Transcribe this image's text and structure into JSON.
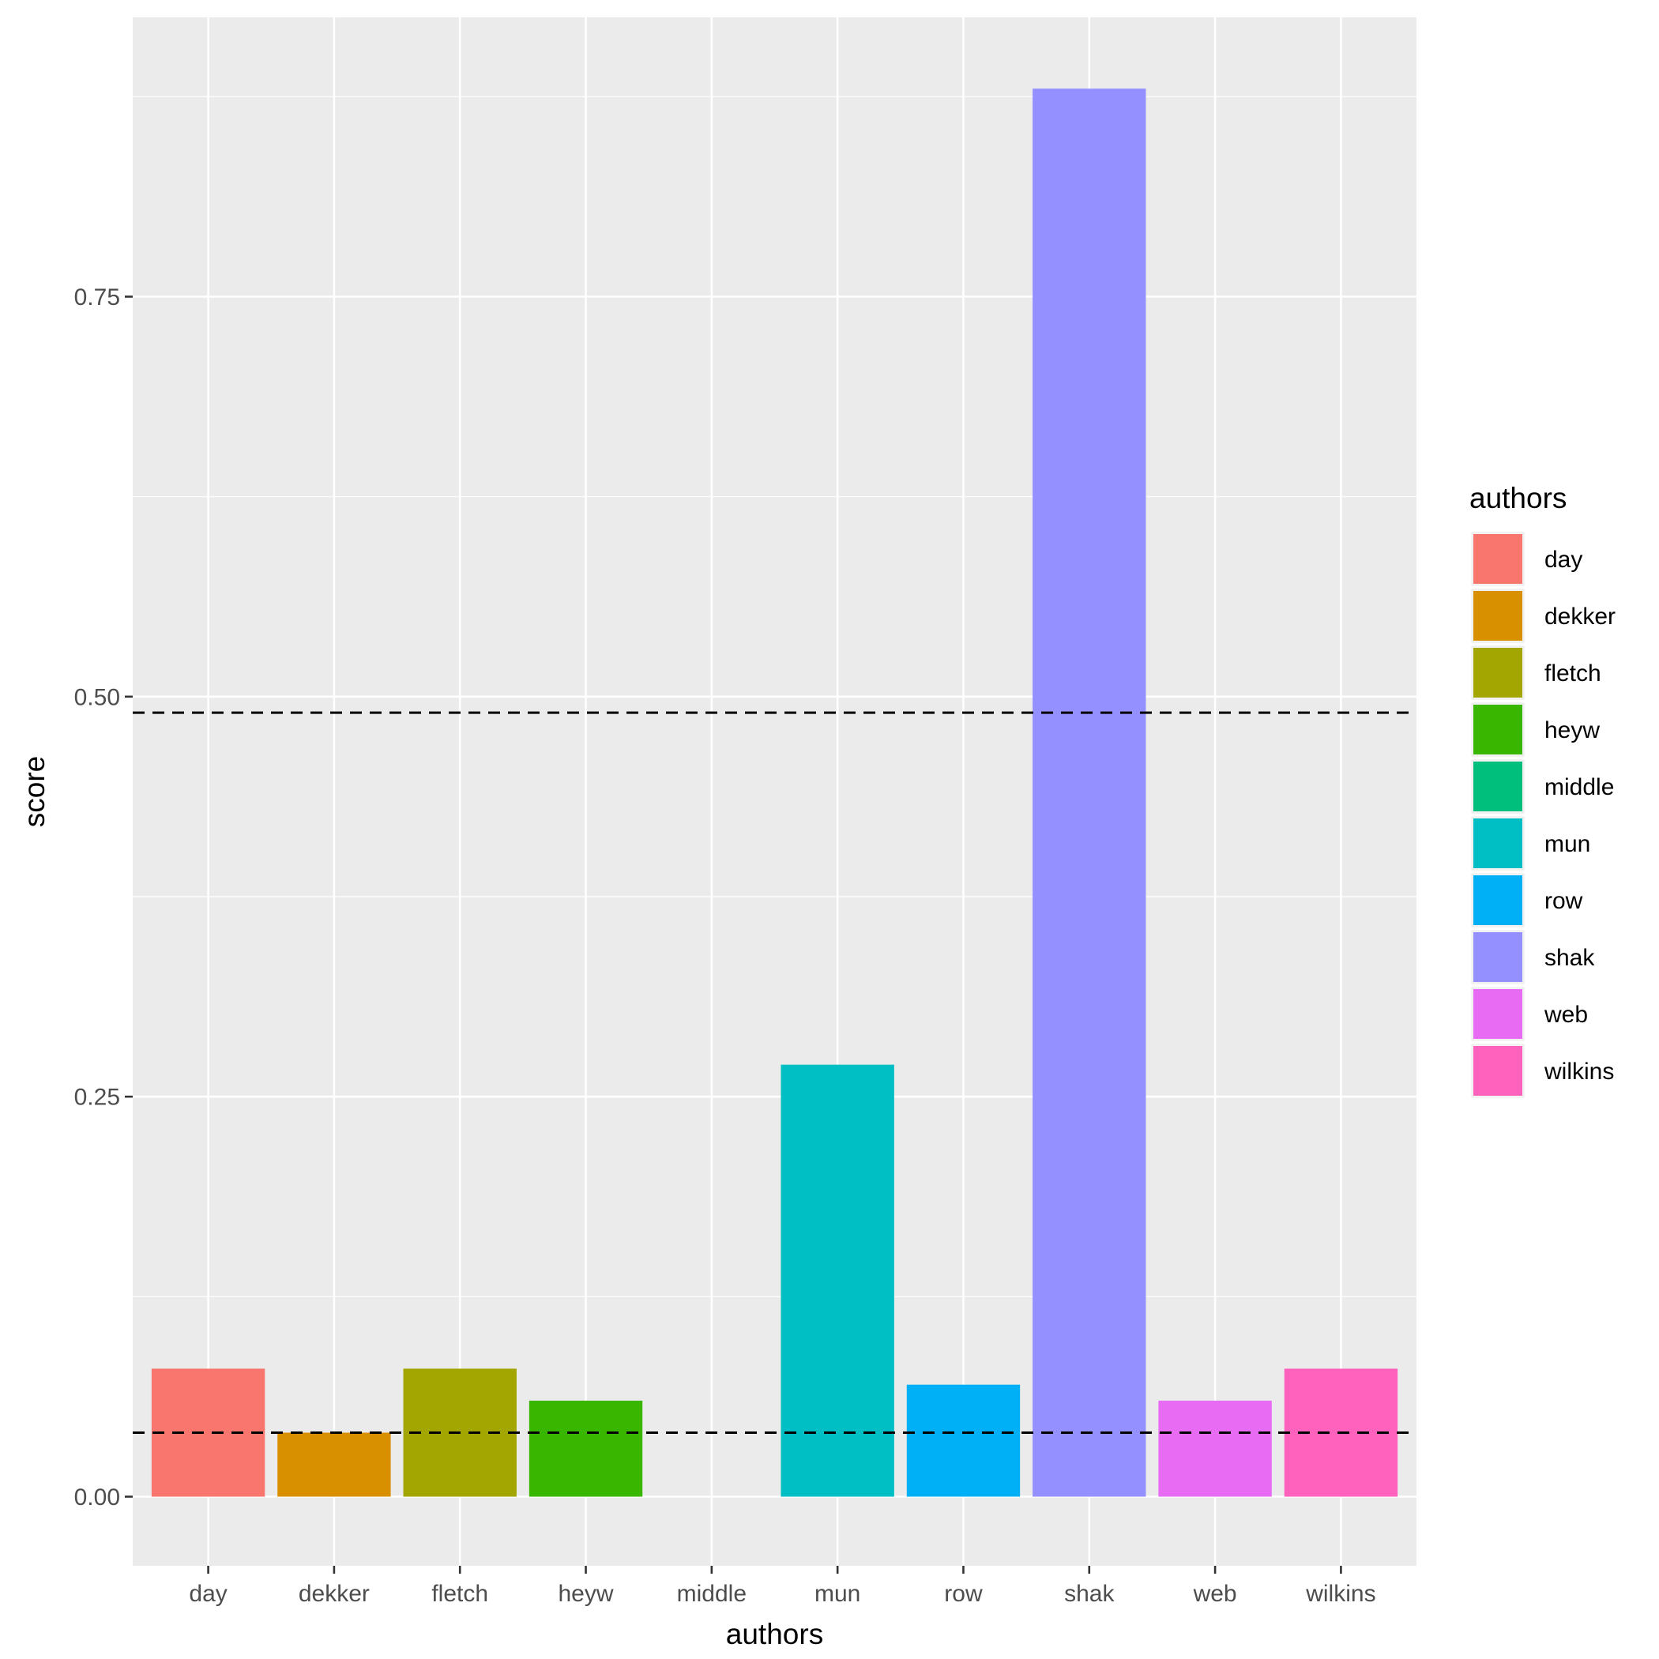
{
  "chart_data": {
    "type": "bar",
    "categories": [
      "day",
      "dekker",
      "fletch",
      "heyw",
      "middle",
      "mun",
      "row",
      "shak",
      "web",
      "wilkins"
    ],
    "values": [
      0.08,
      0.04,
      0.08,
      0.06,
      0.0,
      0.27,
      0.07,
      0.88,
      0.06,
      0.08
    ],
    "colors": [
      "#F8766D",
      "#D89000",
      "#A3A500",
      "#39B600",
      "#00BF7D",
      "#00BFC4",
      "#00B0F6",
      "#9590FF",
      "#E76BF3",
      "#FF62BC"
    ],
    "xlabel": "authors",
    "ylabel": "score",
    "ylim": [
      -0.037,
      0.925
    ],
    "yticks": [
      0.0,
      0.25,
      0.5,
      0.75
    ],
    "ytick_labels": [
      "0.00",
      "0.25",
      "0.50",
      "0.75"
    ],
    "reference_lines": [
      0.04,
      0.49
    ],
    "grid": true,
    "legend": {
      "title": "authors",
      "position": "right",
      "entries": [
        "day",
        "dekker",
        "fletch",
        "heyw",
        "middle",
        "mun",
        "row",
        "shak",
        "web",
        "wilkins"
      ]
    }
  }
}
